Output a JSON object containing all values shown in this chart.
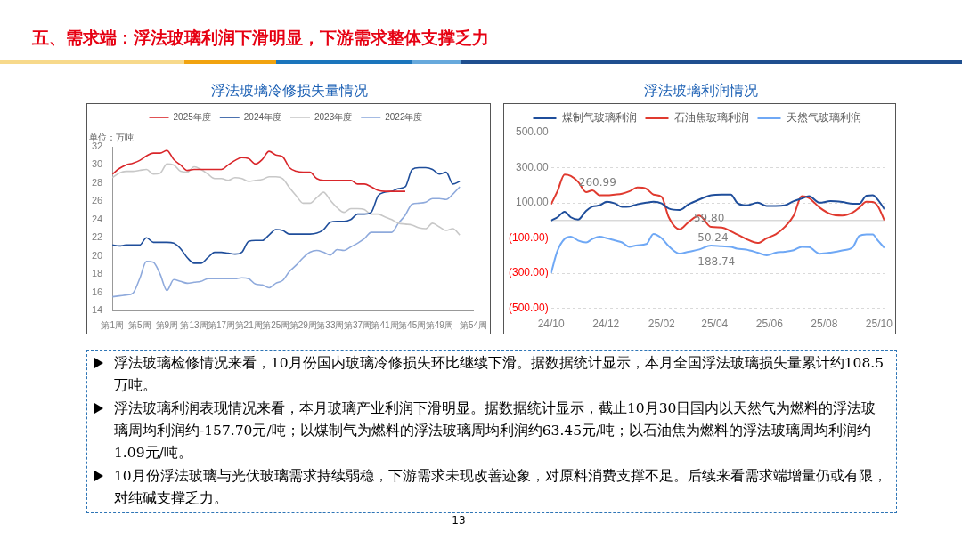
{
  "chart_data": [
    {
      "type": "other",
      "title": "五、需求端：浮法玻璃利润下滑明显，下游需求整体支撑乏力"
    },
    {
      "type": "line",
      "title": "浮法玻璃冷修损失量情况",
      "ylabel": "单位：万吨",
      "legend": "top",
      "grid": false,
      "categories": [
        "第1周",
        null,
        null,
        null,
        "第5周",
        null,
        null,
        null,
        "第9周",
        null,
        null,
        null,
        "第13周",
        null,
        null,
        null,
        "第17周",
        null,
        null,
        null,
        "第21周",
        null,
        null,
        null,
        "第25周",
        null,
        null,
        null,
        "第29周",
        null,
        null,
        null,
        "第33周",
        null,
        null,
        null,
        "第37周",
        null,
        null,
        null,
        "第41周",
        null,
        null,
        null,
        "第45周",
        null,
        null,
        null,
        "第49周",
        null,
        null,
        null,
        null,
        "第54周"
      ],
      "ylim": [
        14,
        32
      ],
      "yticks": [
        14,
        16,
        18,
        20,
        22,
        24,
        26,
        28,
        30,
        32
      ],
      "series": [
        {
          "name": "2025年度",
          "color": "#d9262a",
          "values": [
            29.0,
            29.6,
            30.0,
            30.2,
            30.5,
            31.0,
            31.3,
            31.3,
            31.6,
            30.6,
            30.0,
            29.4,
            29.5,
            29.5,
            29.5,
            29.5,
            29.5,
            30.0,
            30.5,
            30.8,
            30.7,
            30.1,
            30.6,
            31.5,
            31.1,
            30.9,
            29.7,
            29.3,
            29.2,
            29.2,
            28.5,
            28.3,
            28.3,
            28.3,
            28.3,
            28.3,
            27.9,
            27.9,
            27.6,
            27.2,
            27.1,
            27.1,
            27.1,
            27.1,
            null,
            null,
            null,
            null,
            null,
            null,
            null,
            null,
            null,
            null
          ]
        },
        {
          "name": "2024年度",
          "color": "#1f4e9b",
          "values": [
            21.2,
            21.1,
            21.2,
            21.2,
            21.2,
            22.0,
            21.5,
            21.5,
            21.5,
            21.4,
            20.8,
            19.8,
            19.2,
            19.2,
            19.8,
            20.4,
            20.4,
            20.3,
            20.2,
            20.4,
            21.6,
            21.7,
            21.7,
            22.3,
            22.9,
            22.8,
            22.4,
            22.4,
            22.4,
            22.4,
            22.5,
            22.9,
            23.7,
            23.8,
            23.8,
            24.0,
            24.6,
            24.6,
            24.8,
            26.6,
            27.0,
            27.1,
            27.4,
            27.6,
            29.5,
            29.7,
            29.7,
            29.5,
            29.0,
            29.2,
            27.9,
            28.2,
            null,
            null
          ]
        },
        {
          "name": "2023年度",
          "color": "#c8c8c8",
          "values": [
            28.6,
            29.1,
            29.3,
            29.3,
            29.4,
            29.5,
            29.0,
            29.1,
            30.1,
            30.0,
            29.3,
            29.2,
            29.8,
            29.5,
            29.0,
            28.5,
            28.5,
            28.3,
            28.6,
            28.5,
            28.2,
            28.3,
            28.4,
            28.7,
            28.7,
            28.5,
            27.5,
            26.6,
            25.8,
            25.8,
            26.4,
            27.0,
            26.1,
            25.3,
            24.8,
            25.2,
            25.2,
            25.1,
            24.6,
            24.6,
            24.3,
            24.0,
            23.6,
            23.5,
            23.4,
            23.1,
            23.0,
            23.6,
            23.2,
            22.8,
            23.0,
            22.3,
            null,
            null
          ]
        },
        {
          "name": "2022年度",
          "color": "#8faadc",
          "values": [
            15.5,
            15.6,
            15.7,
            15.9,
            17.5,
            19.4,
            19.3,
            18.0,
            16.2,
            17.4,
            17.2,
            17.0,
            17.1,
            17.2,
            17.5,
            17.5,
            17.5,
            17.5,
            17.5,
            17.6,
            17.5,
            16.9,
            16.8,
            16.5,
            17.0,
            17.3,
            18.3,
            19.0,
            19.8,
            20.4,
            20.6,
            20.4,
            20.1,
            20.7,
            20.6,
            21.0,
            21.4,
            21.9,
            22.6,
            22.6,
            22.6,
            22.6,
            23.6,
            24.5,
            25.7,
            25.8,
            25.9,
            26.3,
            26.3,
            26.2,
            26.8,
            27.6,
            null,
            null
          ]
        }
      ]
    },
    {
      "type": "line",
      "title": "浮法玻璃利润情况",
      "legend": "top",
      "grid": "y",
      "x": [
        "2024-10-01",
        "2024-10-08",
        "2024-10-16",
        "2024-10-23",
        "2024-10-31",
        "2024-11-09",
        "2024-11-16",
        "2024-11-24",
        "2024-12-02",
        "2024-12-11",
        "2024-12-19",
        "2024-12-27",
        "2025-01-05",
        "2025-01-15",
        "2025-01-23",
        "2025-02-01",
        "2025-02-09",
        "2025-02-21",
        "2025-03-03",
        "2025-03-15",
        "2025-03-28",
        "2025-04-09",
        "2025-04-19",
        "2025-04-26",
        "2025-05-06",
        "2025-05-19",
        "2025-05-29",
        "2025-06-08",
        "2025-06-18",
        "2025-06-28",
        "2025-07-07",
        "2025-07-15",
        "2025-07-27",
        "2025-08-08",
        "2025-08-21",
        "2025-09-02",
        "2025-09-09",
        "2025-09-17",
        "2025-09-24",
        "2025-09-30",
        "2025-10-07"
      ],
      "xlim": [
        "2024-10-01",
        "2025-10-07"
      ],
      "xticks": [
        {
          "value": "2024-10-01",
          "label": "24/10"
        },
        {
          "value": "2024-12-01",
          "label": "24/12"
        },
        {
          "value": "2025-02-01",
          "label": "25/02"
        },
        {
          "value": "2025-04-01",
          "label": "25/04"
        },
        {
          "value": "2025-06-01",
          "label": "25/06"
        },
        {
          "value": "2025-08-01",
          "label": "25/08"
        },
        {
          "value": "2025-10-01",
          "label": "25/10"
        }
      ],
      "ylim": [
        -500,
        500
      ],
      "yticks": [
        {
          "value": 500,
          "label": "500.00"
        },
        {
          "value": 300,
          "label": "300.00"
        },
        {
          "value": 100,
          "label": "100.00"
        },
        {
          "value": -100,
          "label": "(100.00)"
        },
        {
          "value": -300,
          "label": "(300.00)"
        },
        {
          "value": -500,
          "label": "(500.00)"
        }
      ],
      "ref_lines": [
        {
          "axis": "y",
          "value": 0,
          "color": "#d9d9d9"
        }
      ],
      "annotations": [
        {
          "text": "260.99",
          "x": "2024-10-16",
          "y": 260.99
        },
        {
          "text": "59.80",
          "x": "2025-02-21",
          "y": 59.8
        },
        {
          "text": "-50.24",
          "x": "2025-02-21",
          "y": -50.24
        },
        {
          "text": "-188.74",
          "x": "2025-02-21",
          "y": -188.74
        }
      ],
      "series": [
        {
          "name": "煤制气玻璃利润",
          "color": "#1f4e9b",
          "values": [
            0,
            18,
            50,
            18,
            5,
            55,
            79,
            86,
            106,
            97,
            77,
            79,
            92,
            101,
            106,
            97,
            68,
            59.8,
            92,
            119,
            143,
            147,
            147,
            101,
            86,
            101,
            83,
            83,
            86,
            110,
            125,
            138,
            101,
            110,
            105,
            95,
            95,
            141,
            143,
            116,
            64
          ]
        },
        {
          "name": "石油焦玻璃利润",
          "color": "#e03a2f",
          "values": [
            92,
            165,
            260.99,
            253,
            220,
            161,
            171,
            143,
            143,
            147,
            152,
            165,
            187,
            180,
            147,
            134,
            18,
            -50.24,
            -9,
            28,
            -37,
            -40,
            -61,
            -79,
            -105,
            -128,
            -101,
            -79,
            -37,
            28,
            138,
            128,
            73,
            37,
            28,
            46,
            73,
            106,
            105,
            79,
            1
          ]
        },
        {
          "name": "天然气玻璃利润",
          "color": "#6fa8f5",
          "values": [
            -299,
            -174,
            -105,
            -92,
            -114,
            -125,
            -105,
            -92,
            -101,
            -114,
            -125,
            -150,
            -141,
            -134,
            -77,
            -101,
            -147,
            -188.74,
            -178,
            -165,
            -143,
            -147,
            -150,
            -160,
            -165,
            -183,
            -198,
            -183,
            -178,
            -169,
            -150,
            -152,
            -189,
            -183,
            -171,
            -150,
            -88,
            -79,
            -79,
            -116,
            -156
          ]
        }
      ]
    },
    {
      "type": "other",
      "annotations": [
        "浮法玻璃检修情况来看，10月份国内玻璃冷修损失环比继续下滑。据数据统计显示，本月全国浮法玻璃损失量累计约108.5万吨。",
        "浮法玻璃利润表现情况来看，本月玻璃产业利润下滑明显。据数据统计显示，截止10月30日国内以天然气为燃料的浮法玻璃周均利润约-157.70元/吨；以煤制气为燃料的浮法玻璃周均利润约63.45元/吨；以石油焦为燃料的浮法玻璃周均利润约1.09元/吨。",
        "10月份浮法玻璃与光伏玻璃需求持续弱稳，下游需求未现改善迹象，对原料消费支撑不足。后续来看需求端增量仍或有限，对纯碱支撑乏力。"
      ]
    },
    {
      "type": "other",
      "annotations": [
        "13"
      ]
    }
  ]
}
